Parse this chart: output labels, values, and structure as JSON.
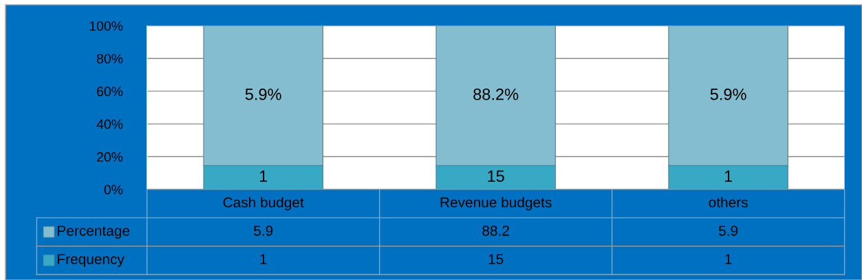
{
  "chart_data": [
    {
      "type": "bar",
      "stacked": true,
      "categories": [
        null,
        null,
        null
      ],
      "series": [
        {
          "color": "#38a9c4",
          "values": [
            14.5,
            14.5,
            14.5
          ]
        },
        {
          "color": "#84bcd0",
          "values": [
            85.5,
            85.5,
            85.5
          ]
        }
      ],
      "ylim": [
        0,
        100
      ],
      "yticks": [
        {
          "value": 0,
          "label": "0%"
        },
        {
          "value": 20,
          "label": "20%"
        },
        {
          "value": 40,
          "label": "40%"
        },
        {
          "value": 60,
          "label": "60%"
        },
        {
          "value": 80,
          "label": "80%"
        },
        {
          "value": 100,
          "label": "100%"
        }
      ],
      "grid": "y",
      "tick_labels": "y",
      "annotations": [
        "1",
        "15",
        "1",
        "5.9%",
        "88.2%",
        "5.9%"
      ]
    },
    {
      "type": "other",
      "categories": [
        "Cash budget",
        "Revenue budgets",
        "others"
      ],
      "series": [
        {
          "name": "Percentage",
          "color": "#84bcd0",
          "values": [
            5.9,
            88.2,
            5.9
          ]
        },
        {
          "name": "Frequency",
          "color": "#38a9c4",
          "values": [
            1,
            15,
            1
          ]
        }
      ],
      "data_labels": true
    }
  ]
}
